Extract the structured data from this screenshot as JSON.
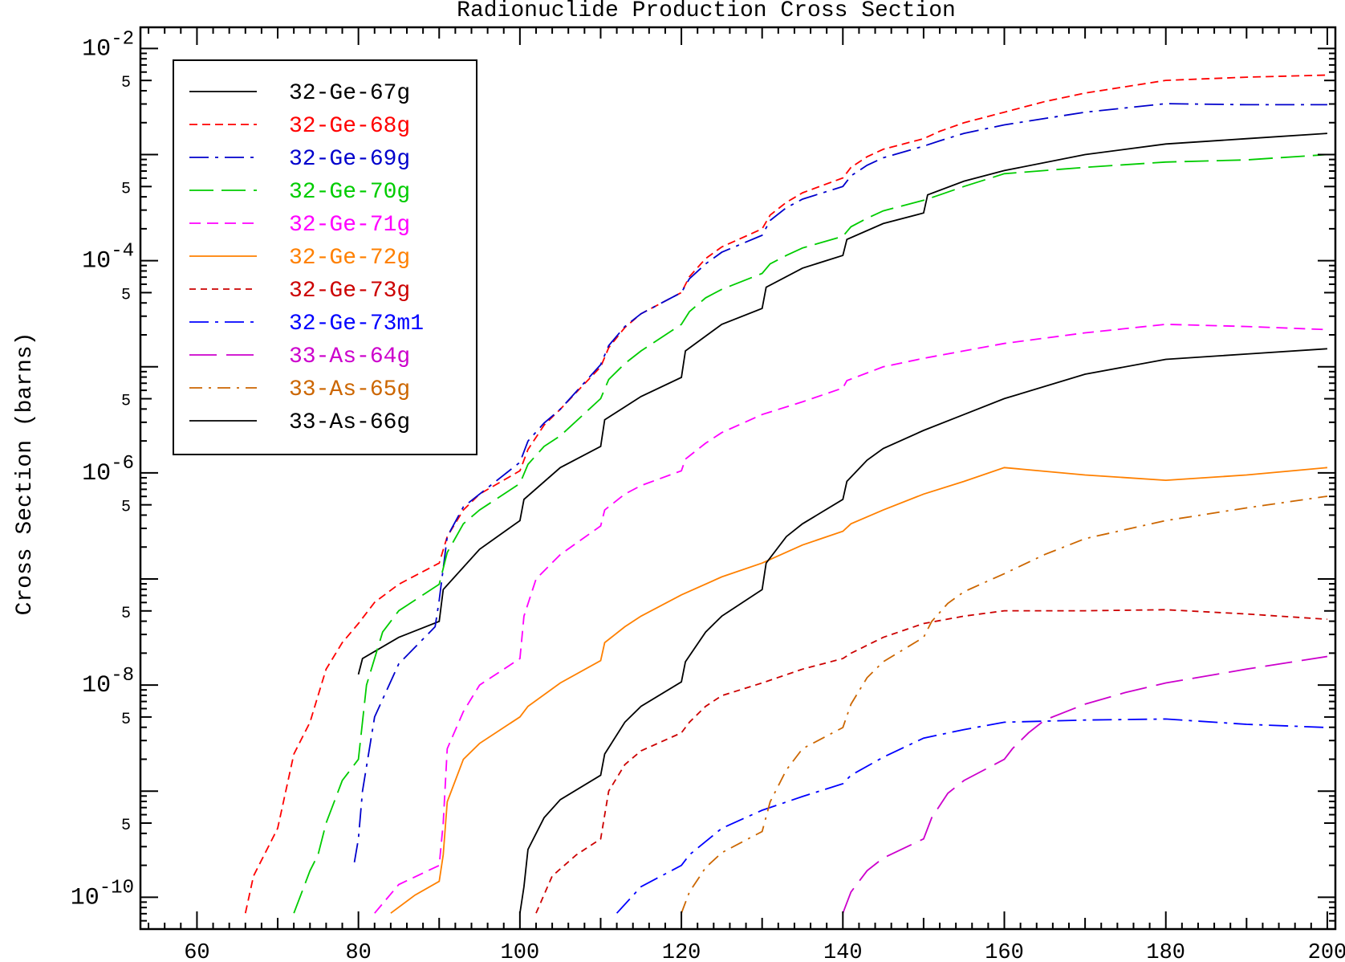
{
  "chart_data": {
    "type": "line",
    "title": "Radionuclide Production Cross Section",
    "xlabel": "",
    "ylabel": "Cross Section (barns)",
    "xlim": [
      53,
      201
    ],
    "ylim_log10": [
      -10.3,
      -1.8
    ],
    "y_scale": "log",
    "grid": false,
    "legend_position": "top-left",
    "x_ticks": [
      "60",
      "80",
      "100",
      "120",
      "140",
      "160",
      "180",
      "200"
    ],
    "x_tick_values": [
      60,
      80,
      100,
      120,
      140,
      160,
      180,
      200
    ],
    "y_major_ticks": [
      {
        "base": "10",
        "exp": "-2",
        "log": -2
      },
      {
        "base": "10",
        "exp": "-4",
        "log": -4
      },
      {
        "base": "10",
        "exp": "-6",
        "log": -6
      },
      {
        "base": "10",
        "exp": "-8",
        "log": -8
      },
      {
        "base": "10",
        "exp": "-10",
        "log": -10
      }
    ],
    "y_five_label": "5",
    "series": [
      {
        "name": "32-Ge-67g",
        "color": "#000000",
        "dash": "",
        "x": [
          80,
          80.5,
          85,
          90,
          90.5,
          95,
          100,
          100.5,
          105,
          110,
          110.5,
          115,
          120,
          120.5,
          125,
          130,
          130.5,
          135,
          140,
          140.5,
          145,
          150,
          150.5,
          155,
          160,
          170,
          180,
          190,
          200
        ],
        "y": [
          -7.9,
          -7.75,
          -7.55,
          -7.4,
          -7.1,
          -6.72,
          -6.45,
          -6.25,
          -5.95,
          -5.75,
          -5.5,
          -5.28,
          -5.1,
          -4.85,
          -4.6,
          -4.45,
          -4.25,
          -4.07,
          -3.95,
          -3.8,
          -3.65,
          -3.55,
          -3.38,
          -3.25,
          -3.15,
          -3.0,
          -2.9,
          -2.85,
          -2.8
        ]
      },
      {
        "name": "32-Ge-68g",
        "color": "#ff0000",
        "dash": "",
        "x": [
          66,
          67,
          69,
          70,
          71,
          72,
          74,
          75,
          76,
          78,
          80,
          82,
          85,
          90,
          91,
          93,
          95,
          100,
          101,
          103,
          105,
          110,
          111,
          113,
          115,
          120,
          121,
          123,
          125,
          130,
          131,
          133,
          135,
          140,
          141,
          143,
          145,
          150,
          152,
          155,
          160,
          165,
          170,
          180,
          190,
          200
        ],
        "y": [
          -10.15,
          -9.8,
          -9.5,
          -9.35,
          -9.0,
          -8.65,
          -8.35,
          -8.1,
          -7.85,
          -7.6,
          -7.42,
          -7.22,
          -7.05,
          -6.85,
          -6.6,
          -6.35,
          -6.2,
          -5.98,
          -5.78,
          -5.55,
          -5.4,
          -5.0,
          -4.82,
          -4.63,
          -4.5,
          -4.3,
          -4.15,
          -3.98,
          -3.87,
          -3.7,
          -3.57,
          -3.45,
          -3.36,
          -3.22,
          -3.12,
          -3.02,
          -2.95,
          -2.85,
          -2.78,
          -2.7,
          -2.6,
          -2.5,
          -2.42,
          -2.3,
          -2.27,
          -2.25
        ]
      },
      {
        "name": "32-Ge-69g",
        "color": "#0000cc",
        "dash": "",
        "x": [
          79.5,
          80,
          80.5,
          82,
          85,
          89.5,
          90,
          91,
          93,
          95,
          100,
          101,
          103,
          105,
          110,
          111,
          113,
          115,
          120,
          121,
          123,
          125,
          130,
          131,
          133,
          135,
          140,
          141,
          143,
          145,
          150,
          152,
          155,
          160,
          170,
          180,
          190,
          200
        ],
        "y": [
          -9.67,
          -9.45,
          -9.0,
          -8.3,
          -7.8,
          -7.45,
          -7.2,
          -6.6,
          -6.32,
          -6.2,
          -5.9,
          -5.7,
          -5.53,
          -5.4,
          -4.98,
          -4.8,
          -4.62,
          -4.5,
          -4.3,
          -4.17,
          -4.03,
          -3.92,
          -3.76,
          -3.62,
          -3.5,
          -3.42,
          -3.3,
          -3.2,
          -3.1,
          -3.03,
          -2.92,
          -2.87,
          -2.8,
          -2.72,
          -2.6,
          -2.52,
          -2.53,
          -2.53
        ]
      },
      {
        "name": "32-Ge-70g",
        "color": "#00cc00",
        "dash": "",
        "x": [
          72,
          74,
          75,
          76,
          78,
          80,
          81,
          83,
          85,
          90,
          91,
          93,
          95,
          100,
          101,
          103,
          105,
          110,
          111,
          113,
          115,
          120,
          121,
          123,
          125,
          130,
          131,
          133,
          135,
          140,
          141,
          143,
          145,
          150,
          152,
          155,
          160,
          170,
          180,
          190,
          200
        ],
        "y": [
          -10.15,
          -9.75,
          -9.6,
          -9.3,
          -8.9,
          -8.7,
          -8.0,
          -7.5,
          -7.3,
          -7.05,
          -6.75,
          -6.48,
          -6.35,
          -6.1,
          -5.92,
          -5.75,
          -5.65,
          -5.3,
          -5.12,
          -4.97,
          -4.85,
          -4.6,
          -4.48,
          -4.35,
          -4.27,
          -4.12,
          -4.03,
          -3.95,
          -3.88,
          -3.77,
          -3.68,
          -3.6,
          -3.53,
          -3.43,
          -3.38,
          -3.3,
          -3.18,
          -3.12,
          -3.07,
          -3.05,
          -3.0
        ]
      },
      {
        "name": "32-Ge-71g",
        "color": "#ff00ff",
        "dash": "",
        "x": [
          82,
          85,
          90,
          90.5,
          91,
          93,
          95,
          100,
          100.5,
          102,
          105,
          110,
          110.5,
          113,
          115,
          120,
          120.5,
          123,
          125,
          130,
          135,
          140,
          140.5,
          145,
          150,
          160,
          170,
          180,
          190,
          200
        ],
        "y": [
          -10.15,
          -9.88,
          -9.7,
          -9.3,
          -8.6,
          -8.25,
          -8.0,
          -7.75,
          -7.35,
          -7.0,
          -6.77,
          -6.5,
          -6.35,
          -6.2,
          -6.12,
          -5.98,
          -5.87,
          -5.72,
          -5.62,
          -5.45,
          -5.33,
          -5.2,
          -5.13,
          -5.0,
          -4.92,
          -4.78,
          -4.68,
          -4.6,
          -4.62,
          -4.65
        ]
      },
      {
        "name": "32-Ge-72g",
        "color": "#ff8000",
        "dash": "",
        "x": [
          84,
          87,
          90,
          90.5,
          91,
          93,
          95,
          100,
          101,
          105,
          110,
          110.5,
          113,
          115,
          120,
          125,
          130,
          135,
          140,
          141,
          145,
          150,
          155,
          160,
          170,
          180,
          190,
          200
        ],
        "y": [
          -10.15,
          -9.98,
          -9.85,
          -9.6,
          -9.1,
          -8.7,
          -8.55,
          -8.3,
          -8.2,
          -7.98,
          -7.77,
          -7.6,
          -7.45,
          -7.35,
          -7.15,
          -6.98,
          -6.85,
          -6.68,
          -6.55,
          -6.48,
          -6.35,
          -6.2,
          -6.08,
          -5.95,
          -6.02,
          -6.07,
          -6.02,
          -5.95
        ]
      },
      {
        "name": "32-Ge-73g",
        "color": "#cc0000",
        "dash": "",
        "x": [
          102,
          104,
          107,
          110,
          111,
          113,
          115,
          120,
          121,
          123,
          125,
          130,
          135,
          140,
          141,
          145,
          150,
          155,
          160,
          170,
          180,
          190,
          200
        ],
        "y": [
          -10.15,
          -9.8,
          -9.6,
          -9.45,
          -9.0,
          -8.75,
          -8.62,
          -8.45,
          -8.35,
          -8.2,
          -8.1,
          -7.98,
          -7.85,
          -7.75,
          -7.7,
          -7.55,
          -7.42,
          -7.35,
          -7.3,
          -7.3,
          -7.29,
          -7.33,
          -7.38
        ]
      },
      {
        "name": "32-Ge-73m1",
        "color": "#0000ff",
        "dash": "",
        "x": [
          112,
          115,
          120,
          121,
          125,
          130,
          135,
          140,
          141,
          145,
          150,
          155,
          160,
          170,
          180,
          190,
          200
        ],
        "y": [
          -10.15,
          -9.9,
          -9.7,
          -9.6,
          -9.35,
          -9.18,
          -9.05,
          -8.93,
          -8.85,
          -8.68,
          -8.5,
          -8.42,
          -8.35,
          -8.33,
          -8.32,
          -8.37,
          -8.4
        ]
      },
      {
        "name": "33-As-64g",
        "color": "#cc00cc",
        "dash": "",
        "x": [
          140,
          141,
          143,
          145,
          150,
          151,
          153,
          155,
          160,
          161,
          163,
          165,
          170,
          175,
          180,
          190,
          200
        ],
        "y": [
          -10.15,
          -9.95,
          -9.75,
          -9.63,
          -9.45,
          -9.25,
          -9.02,
          -8.9,
          -8.7,
          -8.6,
          -8.45,
          -8.33,
          -8.18,
          -8.07,
          -7.98,
          -7.85,
          -7.73
        ]
      },
      {
        "name": "33-As-65g",
        "color": "#cc6600",
        "dash": "",
        "x": [
          120,
          121,
          123,
          125,
          130,
          131,
          133,
          135,
          140,
          141,
          143,
          145,
          150,
          151,
          153,
          155,
          160,
          165,
          170,
          180,
          190,
          200
        ],
        "y": [
          -10.15,
          -9.95,
          -9.72,
          -9.58,
          -9.38,
          -9.1,
          -8.8,
          -8.6,
          -8.4,
          -8.18,
          -7.93,
          -7.78,
          -7.55,
          -7.4,
          -7.23,
          -7.12,
          -6.95,
          -6.77,
          -6.62,
          -6.45,
          -6.33,
          -6.22
        ]
      },
      {
        "name": "33-As-66g",
        "color": "#000000",
        "dash": "",
        "x": [
          100,
          100.5,
          101,
          103,
          105,
          110,
          110.5,
          113,
          115,
          120,
          120.5,
          123,
          125,
          130,
          130.5,
          133,
          135,
          140,
          140.5,
          143,
          145,
          150,
          155,
          160,
          170,
          180,
          190,
          200
        ],
        "y": [
          -10.15,
          -9.9,
          -9.55,
          -9.25,
          -9.08,
          -8.85,
          -8.65,
          -8.35,
          -8.2,
          -7.97,
          -7.78,
          -7.5,
          -7.35,
          -7.1,
          -6.85,
          -6.6,
          -6.48,
          -6.25,
          -6.08,
          -5.88,
          -5.77,
          -5.6,
          -5.45,
          -5.3,
          -5.07,
          -4.93,
          -4.88,
          -4.83
        ]
      }
    ]
  }
}
